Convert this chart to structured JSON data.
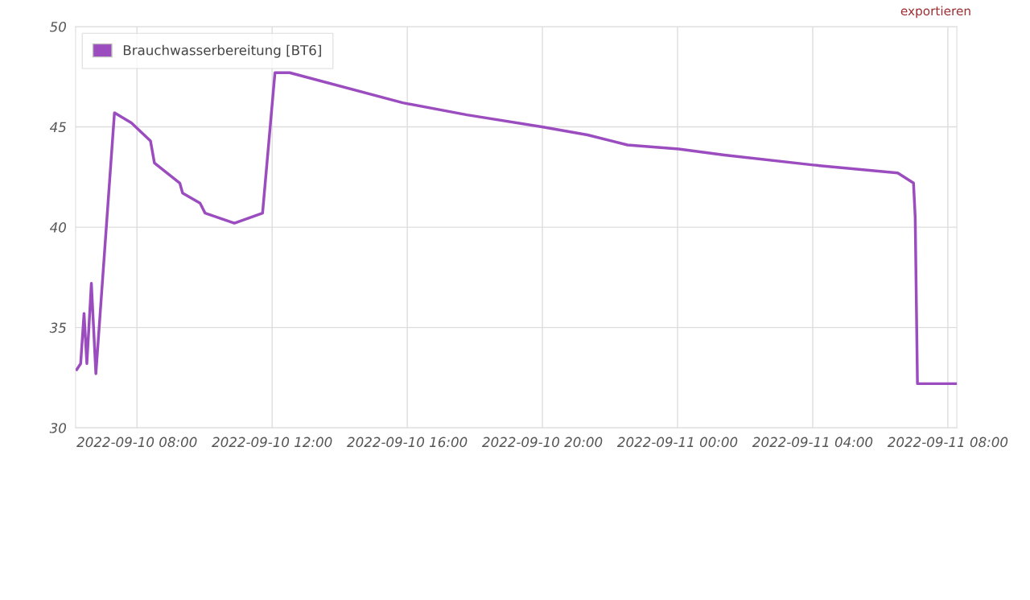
{
  "chart_data": {
    "type": "line",
    "annotations": [
      "exportieren"
    ],
    "x": [
      "2022-09-10T06:13",
      "2022-09-10T06:20",
      "2022-09-10T06:26",
      "2022-09-10T06:31",
      "2022-09-10T06:39",
      "2022-09-10T06:47",
      "2022-09-10T07:20",
      "2022-09-10T07:50",
      "2022-09-10T08:24",
      "2022-09-10T08:31",
      "2022-09-10T09:16",
      "2022-09-10T09:21",
      "2022-09-10T09:52",
      "2022-09-10T10:01",
      "2022-09-10T10:53",
      "2022-09-10T11:43",
      "2022-09-10T12:05",
      "2022-09-10T12:31",
      "2022-09-10T15:52",
      "2022-09-10T17:46",
      "2022-09-10T19:59",
      "2022-09-10T21:20",
      "2022-09-10T22:31",
      "2022-09-11T00:02",
      "2022-09-11T01:23",
      "2022-09-11T04:01",
      "2022-09-11T06:31",
      "2022-09-11T06:59",
      "2022-09-11T07:02",
      "2022-09-11T07:06",
      "2022-09-11T08:16"
    ],
    "series": [
      {
        "name": "Brauchwasserbereitung [BT6]",
        "color": "#9b4dbf",
        "values": [
          32.9,
          33.2,
          35.7,
          33.2,
          37.2,
          32.7,
          45.7,
          45.2,
          44.3,
          43.2,
          42.2,
          41.7,
          41.2,
          40.7,
          40.2,
          40.7,
          47.7,
          47.7,
          46.2,
          45.6,
          45.0,
          44.6,
          44.1,
          43.9,
          43.6,
          43.1,
          42.7,
          42.2,
          40.5,
          32.2,
          32.2
        ]
      }
    ],
    "xlim": [
      "2022-09-10T06:11",
      "2022-09-11T08:16"
    ],
    "xticks": [
      {
        "value": "2022-09-10T08:00",
        "label": "2022-09-10 08:00"
      },
      {
        "value": "2022-09-10T12:00",
        "label": "2022-09-10 12:00"
      },
      {
        "value": "2022-09-10T16:00",
        "label": "2022-09-10 16:00"
      },
      {
        "value": "2022-09-10T20:00",
        "label": "2022-09-10 20:00"
      },
      {
        "value": "2022-09-11T00:00",
        "label": "2022-09-11 00:00"
      },
      {
        "value": "2022-09-11T04:00",
        "label": "2022-09-11 04:00"
      },
      {
        "value": "2022-09-11T08:00",
        "label": "2022-09-11 08:00"
      }
    ],
    "ylim": [
      30,
      50
    ],
    "yticks": [
      30,
      35,
      40,
      45,
      50
    ],
    "grid": true,
    "legend": "top left",
    "marker": "none",
    "line_style": "solid"
  }
}
